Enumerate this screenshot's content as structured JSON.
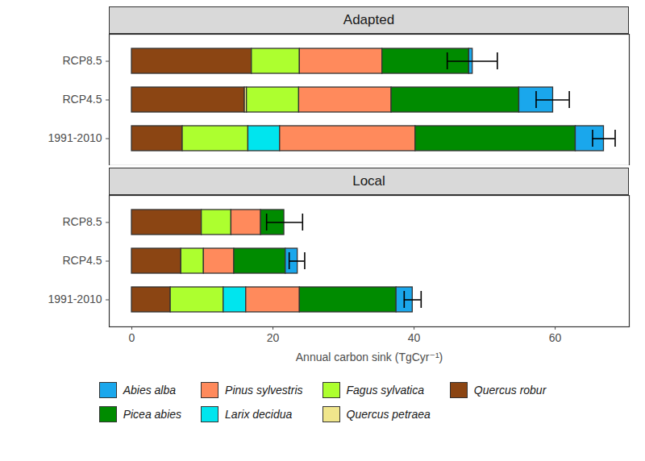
{
  "chart_data": {
    "type": "bar",
    "orientation": "horizontal",
    "stacked": true,
    "grid": false,
    "legend": "bottom",
    "xlabel": "Annual carbon sink (TgCyr⁻¹)",
    "xlim": [
      -3.2,
      70.5
    ],
    "xticks": [
      0,
      20,
      40,
      60
    ],
    "categories": [
      "RCP8.5",
      "RCP4.5",
      "1991-2010"
    ],
    "panels": [
      {
        "title": "Adapted",
        "series": [
          {
            "name": "Abies alba",
            "color": "#1AA7EC",
            "values": [
              0.5,
              4.8,
              4.0
            ]
          },
          {
            "name": "Picea abies",
            "color": "#008B00",
            "values": [
              12.3,
              18.1,
              22.7
            ]
          },
          {
            "name": "Pinus sylvestris",
            "color": "#FF8A5C",
            "values": [
              11.7,
              13.1,
              19.2
            ]
          },
          {
            "name": "Larix decidua",
            "color": "#00E5EE",
            "values": [
              0,
              0,
              4.5
            ]
          },
          {
            "name": "Fagus sylvatica",
            "color": "#ADFF2F",
            "values": [
              6.8,
              7.4,
              9.3
            ]
          },
          {
            "name": "Quercus petraea",
            "color": "#F0E68C",
            "values": [
              0,
              0.3,
              0
            ]
          },
          {
            "name": "Quercus robur",
            "color": "#8B4513",
            "values": [
              17.0,
              16.0,
              7.2
            ]
          }
        ],
        "error_low": [
          44.7,
          57.3,
          65.3
        ],
        "error_high": [
          51.8,
          62.0,
          68.5
        ]
      },
      {
        "title": "Local",
        "series": [
          {
            "name": "Abies alba",
            "color": "#1AA7EC",
            "values": [
              0,
              1.7,
              2.3
            ]
          },
          {
            "name": "Picea abies",
            "color": "#008B00",
            "values": [
              3.3,
              7.3,
              13.7
            ]
          },
          {
            "name": "Pinus sylvestris",
            "color": "#FF8A5C",
            "values": [
              4.2,
              4.3,
              7.6
            ]
          },
          {
            "name": "Larix decidua",
            "color": "#00E5EE",
            "values": [
              0,
              0,
              3.2
            ]
          },
          {
            "name": "Fagus sylvatica",
            "color": "#ADFF2F",
            "values": [
              4.2,
              3.2,
              7.5
            ]
          },
          {
            "name": "Quercus petraea",
            "color": "#F0E68C",
            "values": [
              0,
              0,
              0
            ]
          },
          {
            "name": "Quercus robur",
            "color": "#8B4513",
            "values": [
              9.9,
              7.0,
              5.5
            ]
          }
        ],
        "error_low": [
          19.1,
          22.3,
          38.6
        ],
        "error_high": [
          24.2,
          24.5,
          41.0
        ]
      }
    ]
  }
}
